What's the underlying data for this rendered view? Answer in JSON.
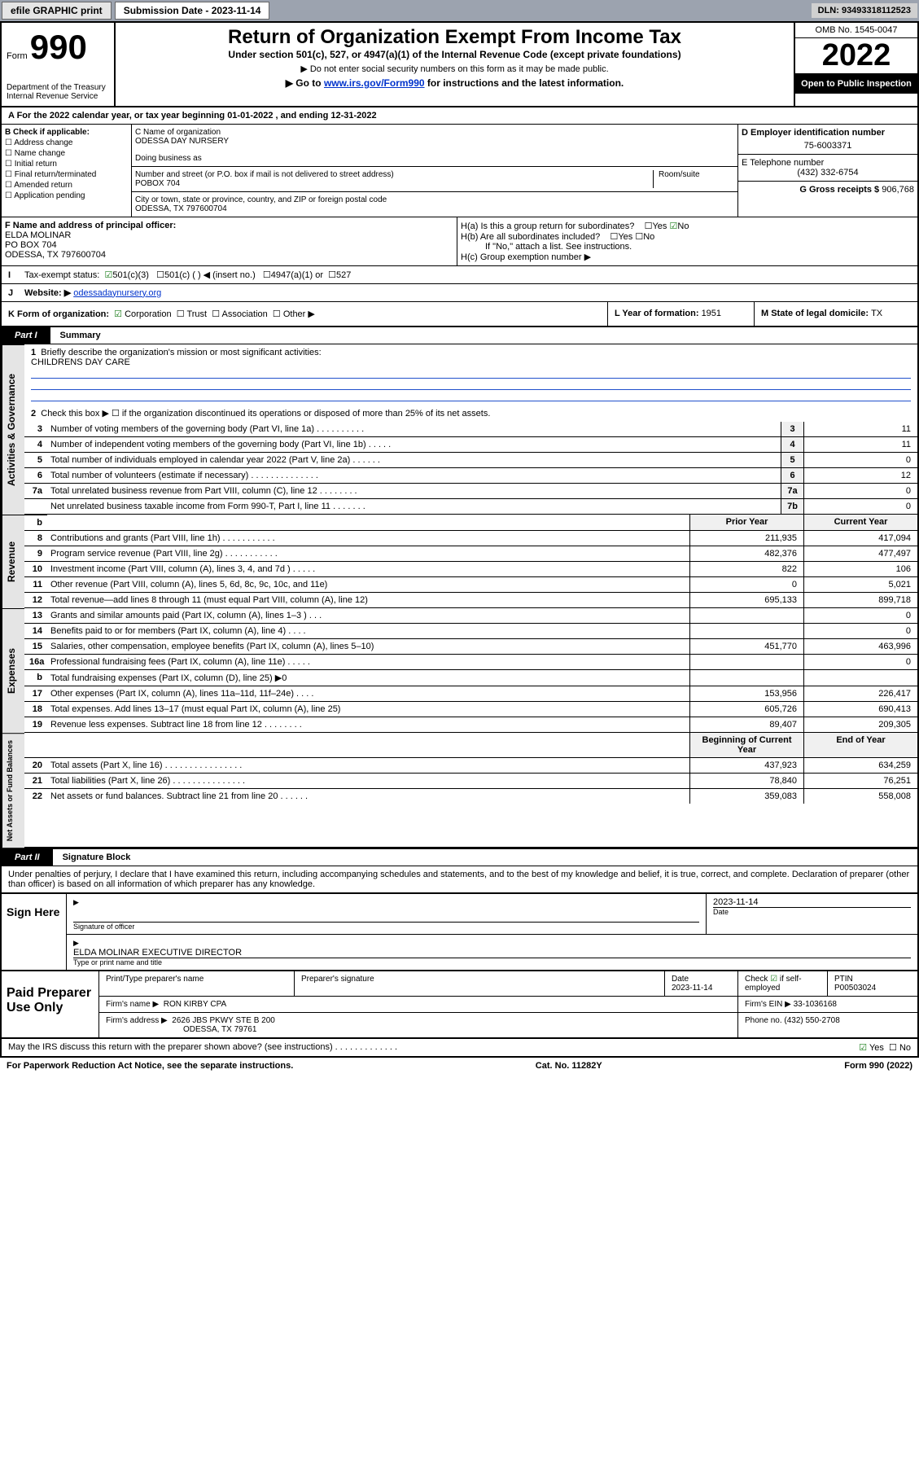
{
  "topbar": {
    "efile": "efile GRAPHIC print",
    "sub_label": "Submission Date - 2023-11-14",
    "dln": "DLN: 93493318112523"
  },
  "header": {
    "form_word": "Form",
    "form_num": "990",
    "dept": "Department of the Treasury",
    "irs": "Internal Revenue Service",
    "title": "Return of Organization Exempt From Income Tax",
    "sub1": "Under section 501(c), 527, or 4947(a)(1) of the Internal Revenue Code (except private foundations)",
    "sub2": "▶ Do not enter social security numbers on this form as it may be made public.",
    "sub3_pre": "▶ Go to ",
    "sub3_link": "www.irs.gov/Form990",
    "sub3_post": " for instructions and the latest information.",
    "omb": "OMB No. 1545-0047",
    "year": "2022",
    "open": "Open to Public Inspection"
  },
  "rowA": "A For the 2022 calendar year, or tax year beginning 01-01-2022    , and ending 12-31-2022",
  "colB": {
    "hdr": "B Check if applicable:",
    "opts": [
      "Address change",
      "Name change",
      "Initial return",
      "Final return/terminated",
      "Amended return",
      "Application pending"
    ]
  },
  "colC": {
    "name_lbl": "C Name of organization",
    "name": "ODESSA DAY NURSERY",
    "dba": "Doing business as",
    "street_lbl": "Number and street (or P.O. box if mail is not delivered to street address)",
    "room_lbl": "Room/suite",
    "street": "POBOX 704",
    "city_lbl": "City or town, state or province, country, and ZIP or foreign postal code",
    "city": "ODESSA, TX  797600704"
  },
  "colD": {
    "ein_lbl": "D Employer identification number",
    "ein": "75-6003371",
    "phone_lbl": "E Telephone number",
    "phone": "(432) 332-6754",
    "gross_lbl": "G Gross receipts $ ",
    "gross": "906,768"
  },
  "rowF": {
    "lbl": "F  Name and address of principal officer:",
    "name": "ELDA MOLINAR",
    "addr1": "PO BOX 704",
    "addr2": "ODESSA, TX  797600704"
  },
  "rowH": {
    "ha": "H(a)  Is this a group return for subordinates?",
    "hb": "H(b)  Are all subordinates included?",
    "hb_note": "If \"No,\" attach a list. See instructions.",
    "hc": "H(c)  Group exemption number ▶",
    "yes": "Yes",
    "no": "No"
  },
  "rowI": {
    "lbl": "Tax-exempt status:",
    "opts": [
      "501(c)(3)",
      "501(c) (  ) ◀ (insert no.)",
      "4947(a)(1) or",
      "527"
    ]
  },
  "rowJ": {
    "lbl": "Website: ▶",
    "val": "odessadaynursery.org"
  },
  "rowK": {
    "lbl": "K Form of organization:",
    "opts": [
      "Corporation",
      "Trust",
      "Association",
      "Other ▶"
    ]
  },
  "rowL": {
    "lbl": "L Year of formation: ",
    "val": "1951"
  },
  "rowM": {
    "lbl": "M State of legal domicile: ",
    "val": "TX"
  },
  "part1": {
    "tab": "Part I",
    "title": "Summary"
  },
  "mission": {
    "lbl": "Briefly describe the organization's mission or most significant activities:",
    "txt": "CHILDRENS DAY CARE"
  },
  "gov": {
    "label": "Activities & Governance",
    "r2": "Check this box ▶ ☐  if the organization discontinued its operations or disposed of more than 25% of its net assets.",
    "rows": [
      {
        "n": "3",
        "d": "Number of voting members of the governing body (Part VI, line 1a)  .  .  .  .  .  .  .  .  .  .",
        "k": "3",
        "v": "11"
      },
      {
        "n": "4",
        "d": "Number of independent voting members of the governing body (Part VI, line 1b)  .  .  .  .  .",
        "k": "4",
        "v": "11"
      },
      {
        "n": "5",
        "d": "Total number of individuals employed in calendar year 2022 (Part V, line 2a)  .  .  .  .  .  .",
        "k": "5",
        "v": "0"
      },
      {
        "n": "6",
        "d": "Total number of volunteers (estimate if necessary)  .  .  .  .  .  .  .  .  .  .  .  .  .  .",
        "k": "6",
        "v": "12"
      },
      {
        "n": "7a",
        "d": "Total unrelated business revenue from Part VIII, column (C), line 12  .  .  .  .  .  .  .  .",
        "k": "7a",
        "v": "0"
      },
      {
        "n": "",
        "d": "Net unrelated business taxable income from Form 990-T, Part I, line 11  .  .  .  .  .  .  .",
        "k": "7b",
        "v": "0"
      }
    ]
  },
  "rev": {
    "label": "Revenue",
    "hdr1": "Prior Year",
    "hdr2": "Current Year",
    "rows": [
      {
        "n": "8",
        "d": "Contributions and grants (Part VIII, line 1h)  .  .  .  .  .  .  .  .  .  .  .",
        "p": "211,935",
        "c": "417,094"
      },
      {
        "n": "9",
        "d": "Program service revenue (Part VIII, line 2g)  .  .  .  .  .  .  .  .  .  .  .",
        "p": "482,376",
        "c": "477,497"
      },
      {
        "n": "10",
        "d": "Investment income (Part VIII, column (A), lines 3, 4, and 7d )  .  .  .  .  .",
        "p": "822",
        "c": "106"
      },
      {
        "n": "11",
        "d": "Other revenue (Part VIII, column (A), lines 5, 6d, 8c, 9c, 10c, and 11e)",
        "p": "0",
        "c": "5,021"
      },
      {
        "n": "12",
        "d": "Total revenue—add lines 8 through 11 (must equal Part VIII, column (A), line 12)",
        "p": "695,133",
        "c": "899,718"
      }
    ]
  },
  "exp": {
    "label": "Expenses",
    "rows": [
      {
        "n": "13",
        "d": "Grants and similar amounts paid (Part IX, column (A), lines 1–3 )  .  .  .",
        "p": "",
        "c": "0"
      },
      {
        "n": "14",
        "d": "Benefits paid to or for members (Part IX, column (A), line 4)  .  .  .  .",
        "p": "",
        "c": "0"
      },
      {
        "n": "15",
        "d": "Salaries, other compensation, employee benefits (Part IX, column (A), lines 5–10)",
        "p": "451,770",
        "c": "463,996"
      },
      {
        "n": "16a",
        "d": "Professional fundraising fees (Part IX, column (A), line 11e)  .  .  .  .  .",
        "p": "",
        "c": "0"
      },
      {
        "n": "b",
        "d": "Total fundraising expenses (Part IX, column (D), line 25) ▶0",
        "p": "",
        "c": ""
      },
      {
        "n": "17",
        "d": "Other expenses (Part IX, column (A), lines 11a–11d, 11f–24e)  .  .  .  .",
        "p": "153,956",
        "c": "226,417"
      },
      {
        "n": "18",
        "d": "Total expenses. Add lines 13–17 (must equal Part IX, column (A), line 25)",
        "p": "605,726",
        "c": "690,413"
      },
      {
        "n": "19",
        "d": "Revenue less expenses. Subtract line 18 from line 12  .  .  .  .  .  .  .  .",
        "p": "89,407",
        "c": "209,305"
      }
    ]
  },
  "net": {
    "label": "Net Assets or Fund Balances",
    "hdr1": "Beginning of Current Year",
    "hdr2": "End of Year",
    "rows": [
      {
        "n": "20",
        "d": "Total assets (Part X, line 16)  .  .  .  .  .  .  .  .  .  .  .  .  .  .  .  .",
        "p": "437,923",
        "c": "634,259"
      },
      {
        "n": "21",
        "d": "Total liabilities (Part X, line 26)  .  .  .  .  .  .  .  .  .  .  .  .  .  .  .",
        "p": "78,840",
        "c": "76,251"
      },
      {
        "n": "22",
        "d": "Net assets or fund balances. Subtract line 21 from line 20  .  .  .  .  .  .",
        "p": "359,083",
        "c": "558,008"
      }
    ]
  },
  "part2": {
    "tab": "Part II",
    "title": "Signature Block"
  },
  "sig": {
    "declare": "Under penalties of perjury, I declare that I have examined this return, including accompanying schedules and statements, and to the best of my knowledge and belief, it is true, correct, and complete. Declaration of preparer (other than officer) is based on all information of which preparer has any knowledge.",
    "here": "Sign Here",
    "s1": "Signature of officer",
    "date": "2023-11-14",
    "date_lbl": "Date",
    "name": "ELDA MOLINAR  EXECUTIVE DIRECTOR",
    "s2": "Type or print name and title"
  },
  "prep": {
    "title": "Paid Preparer Use Only",
    "c1": "Print/Type preparer's name",
    "c2": "Preparer's signature",
    "c3": "Date",
    "c3v": "2023-11-14",
    "c4": "Check ☑ if self-employed",
    "c5": "PTIN",
    "c5v": "P00503024",
    "firm_lbl": "Firm's name    ▶",
    "firm": "RON KIRBY CPA",
    "ein_lbl": "Firm's EIN ▶",
    "ein": "33-1036168",
    "addr_lbl": "Firm's address ▶",
    "addr": "2626 JBS PKWY STE B 200",
    "addr2": "ODESSA, TX  79761",
    "phone_lbl": "Phone no. ",
    "phone": "(432) 550-2708"
  },
  "footer": {
    "discuss": "May the IRS discuss this return with the preparer shown above? (see instructions)  .  .  .  .  .  .  .  .  .  .  .  .  .",
    "yes": "Yes",
    "no": "No",
    "paperwork": "For Paperwork Reduction Act Notice, see the separate instructions.",
    "cat": "Cat. No. 11282Y",
    "form": "Form 990 (2022)"
  }
}
